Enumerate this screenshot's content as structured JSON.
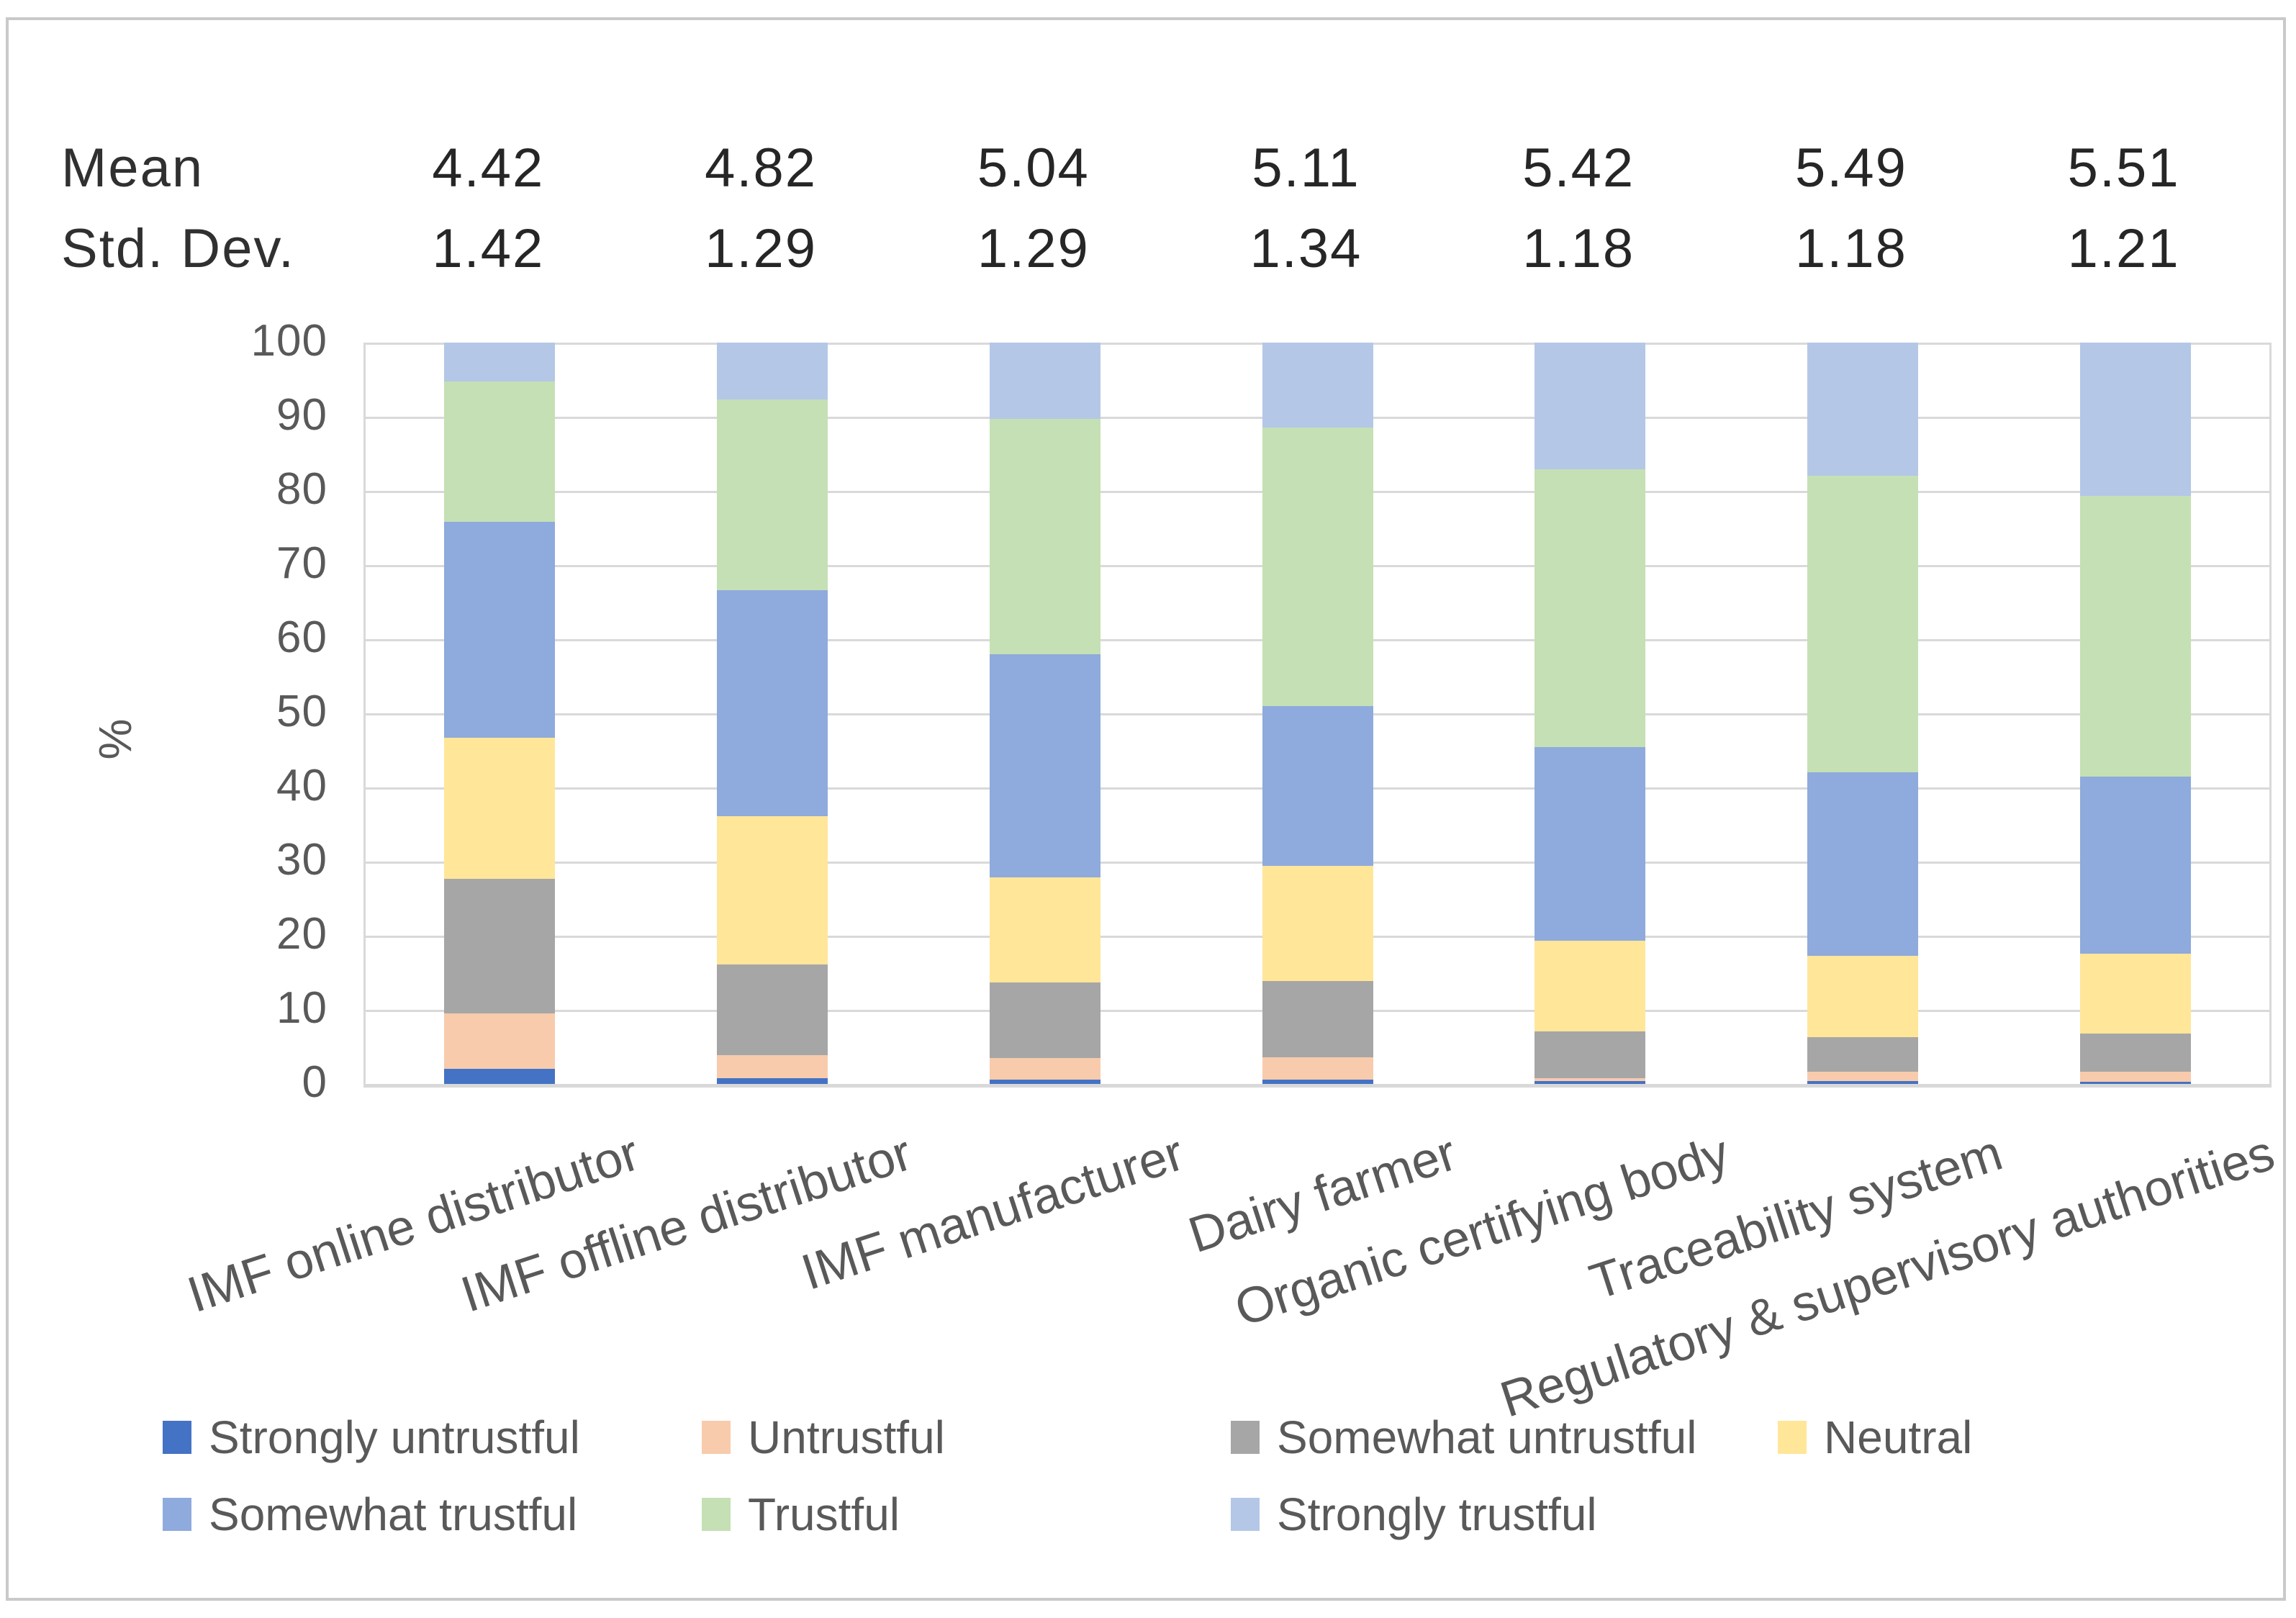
{
  "chart_data": {
    "type": "stacked-bar",
    "title": "",
    "xlabel": "",
    "ylabel": "%",
    "ylim": [
      0,
      100
    ],
    "ytick_step": 10,
    "grid": true,
    "legend_position": "bottom",
    "categories": [
      "IMF online distributor",
      "IMF offline distributor",
      "IMF manufacturer",
      "Dairy farmer",
      "Organic certifying body",
      "Traceability system",
      "Regulatory & supervisory authorities"
    ],
    "series": [
      {
        "name": "Strongly untrustful",
        "color": "#4472C4",
        "values": [
          2.0,
          0.8,
          0.6,
          0.6,
          0.4,
          0.4,
          0.3
        ]
      },
      {
        "name": "Untrustful",
        "color": "#F8CBAD",
        "values": [
          7.5,
          3.1,
          2.9,
          3.0,
          0.4,
          1.3,
          1.4
        ]
      },
      {
        "name": "Somewhat untrustful",
        "color": "#A6A6A6",
        "values": [
          18.2,
          12.2,
          10.2,
          10.3,
          6.3,
          4.6,
          5.1
        ]
      },
      {
        "name": "Neutral",
        "color": "#FFE699",
        "values": [
          19.0,
          20.0,
          14.2,
          15.5,
          12.2,
          11.0,
          10.8
        ]
      },
      {
        "name": "Somewhat trustful",
        "color": "#8FAADC",
        "values": [
          29.1,
          30.5,
          30.1,
          21.6,
          26.1,
          24.7,
          23.9
        ]
      },
      {
        "name": "Trustful",
        "color": "#C5E0B4",
        "values": [
          19.0,
          25.7,
          31.7,
          37.5,
          37.5,
          40.0,
          37.8
        ]
      },
      {
        "name": "Strongly trustful",
        "color": "#B4C7E7",
        "values": [
          5.2,
          7.7,
          10.3,
          11.5,
          17.1,
          18.0,
          20.7
        ]
      }
    ],
    "stats_rows": [
      {
        "label": "Mean",
        "values": [
          "4.42",
          "4.82",
          "5.04",
          "5.11",
          "5.42",
          "5.49",
          "5.51"
        ]
      },
      {
        "label": "Std. Dev.",
        "values": [
          "1.42",
          "1.29",
          "1.29",
          "1.34",
          "1.18",
          "1.18",
          "1.21"
        ]
      }
    ]
  },
  "colors": {
    "grid": "#D9D9D9",
    "frame": "#C9C9C9",
    "text_primary": "#262626",
    "text_secondary": "#595959"
  }
}
